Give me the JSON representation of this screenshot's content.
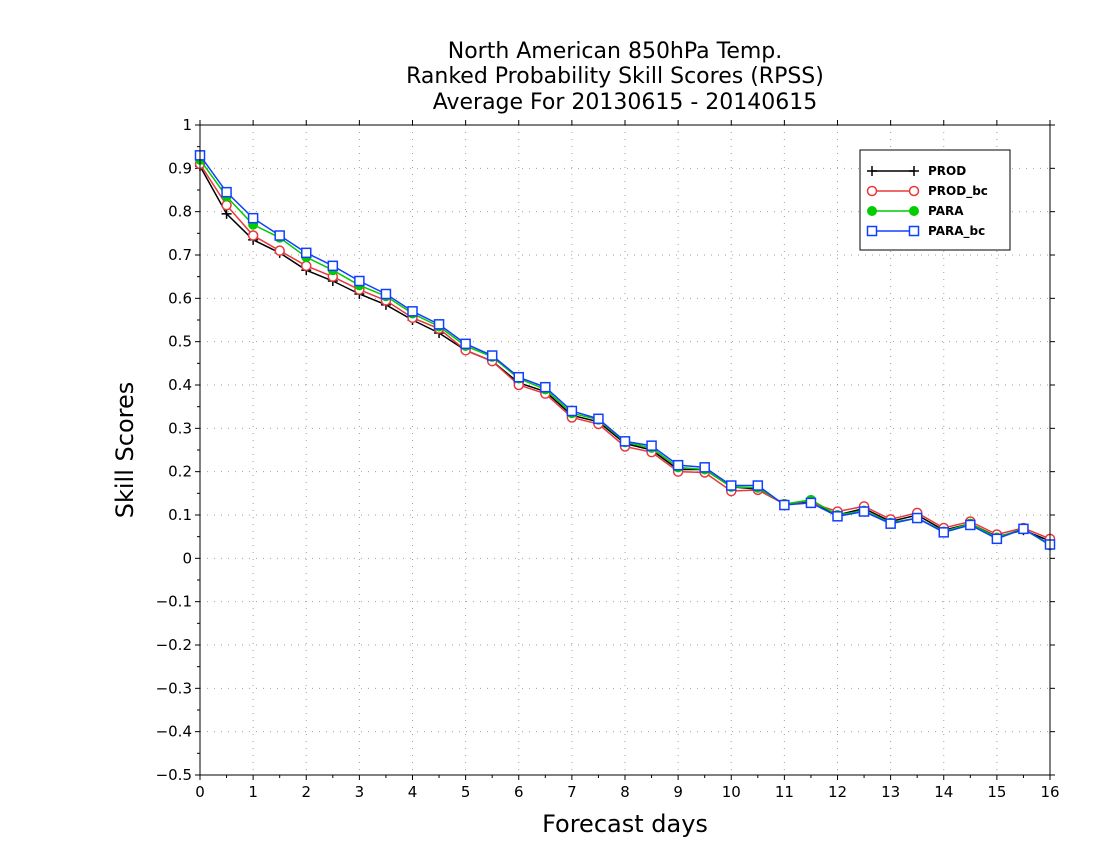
{
  "chart_data": {
    "type": "line",
    "title": [
      "North American 850hPa Temp.",
      "Ranked Probability Skill Scores (RPSS)",
      "Average For 20130615 - 20140615"
    ],
    "xlabel": "Forecast days",
    "ylabel": "Skill Scores",
    "xlim": [
      0,
      16
    ],
    "ylim": [
      -0.5,
      1
    ],
    "xticks": [
      0,
      1,
      2,
      3,
      4,
      5,
      6,
      7,
      8,
      9,
      10,
      11,
      12,
      13,
      14,
      15,
      16
    ],
    "yticks": [
      -0.5,
      -0.4,
      -0.3,
      -0.2,
      -0.1,
      0,
      0.1,
      0.2,
      0.3,
      0.4,
      0.5,
      0.6,
      0.7,
      0.8,
      0.9,
      1
    ],
    "ytick_labels": [
      "−0.5",
      "−0.4",
      "−0.3",
      "−0.2",
      "−0.1",
      "0",
      "0.1",
      "0.2",
      "0.3",
      "0.4",
      "0.5",
      "0.6",
      "0.7",
      "0.8",
      "0.9",
      "1"
    ],
    "grid": true,
    "legend_position": "top-right",
    "x": [
      0,
      0.5,
      1,
      1.5,
      2,
      2.5,
      3,
      3.5,
      4,
      4.5,
      5,
      5.5,
      6,
      6.5,
      7,
      7.5,
      8,
      8.5,
      9,
      9.5,
      10,
      10.5,
      11,
      11.5,
      12,
      12.5,
      13,
      13.5,
      14,
      14.5,
      15,
      15.5,
      16
    ],
    "series": [
      {
        "name": "PROD",
        "color": "#000000",
        "marker": "plus",
        "values": [
          0.905,
          0.795,
          0.735,
          0.705,
          0.665,
          0.64,
          0.61,
          0.585,
          0.55,
          0.52,
          0.48,
          0.455,
          0.405,
          0.385,
          0.33,
          0.315,
          0.265,
          0.25,
          0.205,
          0.205,
          0.165,
          0.16,
          0.125,
          0.13,
          0.1,
          0.115,
          0.085,
          0.1,
          0.065,
          0.08,
          0.05,
          0.065,
          0.04
        ]
      },
      {
        "name": "PROD_bc",
        "color": "#e8383c",
        "marker": "circle",
        "values": [
          0.91,
          0.815,
          0.745,
          0.71,
          0.675,
          0.65,
          0.62,
          0.595,
          0.555,
          0.53,
          0.48,
          0.455,
          0.4,
          0.38,
          0.325,
          0.31,
          0.258,
          0.245,
          0.2,
          0.198,
          0.155,
          0.158,
          0.125,
          0.128,
          0.108,
          0.12,
          0.09,
          0.105,
          0.07,
          0.085,
          0.055,
          0.07,
          0.045
        ]
      },
      {
        "name": "PARA",
        "color": "#00cc00",
        "marker": "dot",
        "values": [
          0.92,
          0.835,
          0.77,
          0.74,
          0.695,
          0.665,
          0.63,
          0.605,
          0.565,
          0.535,
          0.49,
          0.465,
          0.415,
          0.39,
          0.335,
          0.32,
          0.268,
          0.255,
          0.21,
          0.205,
          0.165,
          0.163,
          0.125,
          0.135,
          0.1,
          0.11,
          0.082,
          0.093,
          0.062,
          0.08,
          0.048,
          0.068,
          0.03
        ]
      },
      {
        "name": "PARA_bc",
        "color": "#1040ff",
        "marker": "square",
        "values": [
          0.93,
          0.845,
          0.785,
          0.745,
          0.705,
          0.675,
          0.64,
          0.61,
          0.57,
          0.54,
          0.495,
          0.468,
          0.418,
          0.395,
          0.34,
          0.322,
          0.27,
          0.26,
          0.215,
          0.21,
          0.168,
          0.168,
          0.123,
          0.128,
          0.097,
          0.108,
          0.08,
          0.093,
          0.06,
          0.077,
          0.045,
          0.068,
          0.032
        ]
      }
    ]
  }
}
